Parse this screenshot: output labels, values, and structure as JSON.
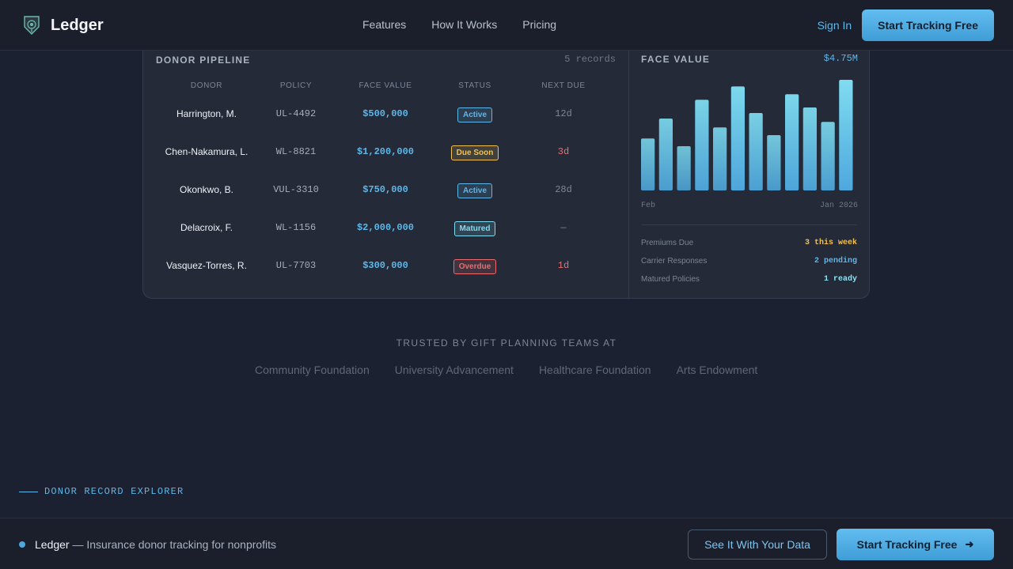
{
  "header": {
    "brand": "Ledger",
    "nav": [
      "Features",
      "How It Works",
      "Pricing"
    ],
    "signin": "Sign In",
    "cta": "Start Tracking Free"
  },
  "pipeline": {
    "title": "DONOR PIPELINE",
    "meta": "5 records",
    "columns": [
      "DONOR",
      "POLICY",
      "FACE VALUE",
      "STATUS",
      "NEXT DUE"
    ],
    "rows": [
      {
        "donor": "Harrington, M.",
        "policy": "UL-4492",
        "face": "$500,000",
        "status": "Active",
        "due": "12d"
      },
      {
        "donor": "Chen-Nakamura, L.",
        "policy": "WL-8821",
        "face": "$1,200,000",
        "status": "Due Soon",
        "due": "3d"
      },
      {
        "donor": "Okonkwo, B.",
        "policy": "VUL-3310",
        "face": "$750,000",
        "status": "Active",
        "due": "28d"
      },
      {
        "donor": "Delacroix, F.",
        "policy": "WL-1156",
        "face": "$2,000,000",
        "status": "Matured",
        "due": "—"
      },
      {
        "donor": "Vasquez-Torres, R.",
        "policy": "UL-7703",
        "face": "$300,000",
        "status": "Overdue",
        "due": "1d"
      }
    ],
    "status_colors": {
      "Active": "#5fb6e8",
      "Due Soon": "#f3c14e",
      "Matured": "#7fdcf0",
      "Overdue": "#ef6b6b"
    }
  },
  "face_panel": {
    "title": "FACE VALUE",
    "total": "$4.75M",
    "stats": [
      {
        "label": "Premiums Due",
        "value": "3 this week",
        "color": "#f3c14e"
      },
      {
        "label": "Carrier Responses",
        "value": "2 pending",
        "color": "#5fb6e8"
      },
      {
        "label": "Matured Policies",
        "value": "1 ready",
        "color": "#8fe3f5"
      }
    ]
  },
  "chart_data": {
    "type": "bar",
    "categories_start": "Feb",
    "categories_end": "Jan 2026",
    "values": [
      47,
      65,
      40,
      82,
      57,
      94,
      70,
      50,
      87,
      75,
      62,
      100
    ],
    "ylim": [
      0,
      100
    ],
    "color_low": "#4ea8de",
    "color_high": "#7fdcf0"
  },
  "trusted": {
    "title": "TRUSTED BY GIFT PLANNING TEAMS AT",
    "logos": [
      "Community Foundation",
      "University Advancement",
      "Healthcare Foundation",
      "Arts Endowment"
    ]
  },
  "explorer": {
    "eyebrow": "DONOR RECORD EXPLORER",
    "heading": ""
  },
  "sticky": {
    "brand": "Ledger",
    "tagline": " — Insurance donor tracking for nonprofits",
    "secondary": "See It With Your Data",
    "primary": "Start Tracking Free",
    "arrow": "➜"
  }
}
